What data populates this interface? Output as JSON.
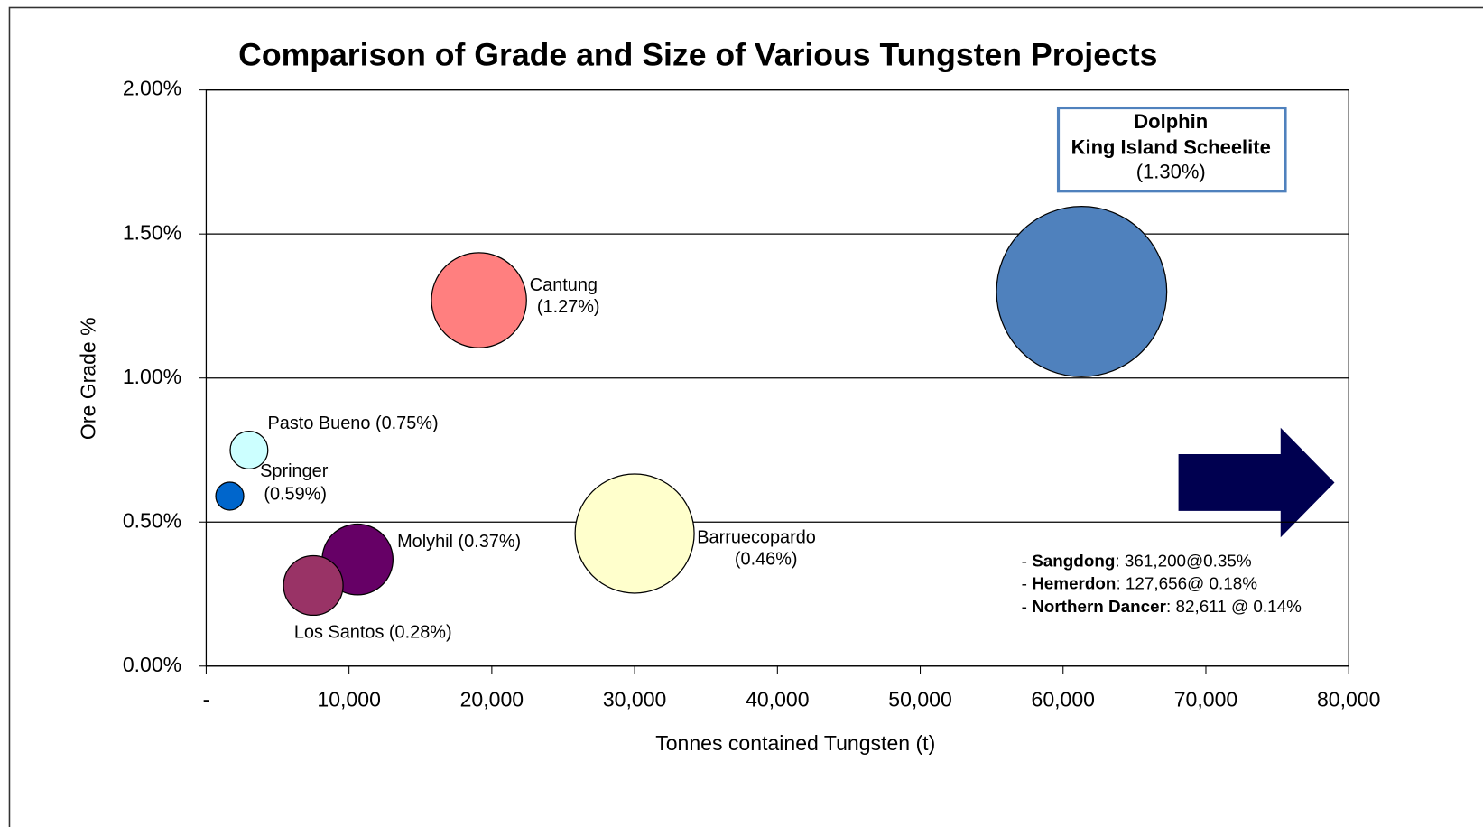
{
  "chart_data": {
    "type": "bubble",
    "title": "Comparison of Grade and Size of Various Tungsten Projects",
    "xlabel": "Tonnes contained Tungsten (t)",
    "ylabel": "Ore Grade %",
    "xlim": [
      0,
      80000
    ],
    "ylim": [
      0,
      2
    ],
    "xticks": [
      {
        "value": 0,
        "label": "-"
      },
      {
        "value": 10000,
        "label": "10,000"
      },
      {
        "value": 20000,
        "label": "20,000"
      },
      {
        "value": 30000,
        "label": "30,000"
      },
      {
        "value": 40000,
        "label": "40,000"
      },
      {
        "value": 50000,
        "label": "50,000"
      },
      {
        "value": 60000,
        "label": "60,000"
      },
      {
        "value": 70000,
        "label": "70,000"
      },
      {
        "value": 80000,
        "label": "80,000"
      }
    ],
    "yticks": [
      {
        "value": 0,
        "label": "0.00%"
      },
      {
        "value": 0.5,
        "label": "0.50%"
      },
      {
        "value": 1,
        "label": "1.00%"
      },
      {
        "value": 1.5,
        "label": "1.50%"
      },
      {
        "value": 2,
        "label": "2.00%"
      }
    ],
    "grid": true,
    "series": [
      {
        "name": "Dolphin King Island Scheelite",
        "color": "#4f81bd",
        "x": [
          61300
        ],
        "values": [
          1.3
        ],
        "label": [
          "Dolphin",
          "King Island Scheelite",
          "(1.30%)"
        ]
      },
      {
        "name": "Cantung",
        "color": "#ff7f7f",
        "x": [
          19100
        ],
        "values": [
          1.27
        ],
        "label": [
          "Cantung",
          "(1.27%)"
        ]
      },
      {
        "name": "Pasto Bueno",
        "color": "#ccffff",
        "x": [
          3000
        ],
        "values": [
          0.75
        ],
        "label": [
          "Pasto Bueno (0.75%)"
        ]
      },
      {
        "name": "Springer",
        "color": "#0066cc",
        "x": [
          1650
        ],
        "values": [
          0.59
        ],
        "label": [
          "Springer",
          "(0.59%)"
        ]
      },
      {
        "name": "Barruecopardo",
        "color": "#ffffcc",
        "x": [
          30000
        ],
        "values": [
          0.46
        ],
        "label": [
          "Barruecopardo",
          "(0.46%)"
        ]
      },
      {
        "name": "Molyhil",
        "color": "#660066",
        "x": [
          10600
        ],
        "values": [
          0.37
        ],
        "label": [
          "Molyhil (0.37%)"
        ]
      },
      {
        "name": "Los Santos",
        "color": "#993366",
        "x": [
          7500
        ],
        "values": [
          0.28
        ],
        "label": [
          "Los Santos (0.28%)"
        ]
      }
    ],
    "notes": {
      "bullet": "- ",
      "items": [
        {
          "bold": "Sangdong",
          "text": ": 361,200@0.35%"
        },
        {
          "bold": "Hemerdon",
          "text": ": 127,656@ 0.18%"
        },
        {
          "bold": "Northern Dancer",
          "text": ": 82,611 @ 0.14%"
        }
      ]
    }
  }
}
